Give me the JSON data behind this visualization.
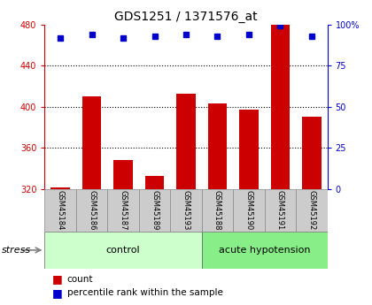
{
  "title": "GDS1251 / 1371576_at",
  "samples": [
    "GSM45184",
    "GSM45186",
    "GSM45187",
    "GSM45189",
    "GSM45193",
    "GSM45188",
    "GSM45190",
    "GSM45191",
    "GSM45192"
  ],
  "counts": [
    322,
    410,
    348,
    333,
    413,
    403,
    397,
    480,
    390
  ],
  "percentiles": [
    92,
    94,
    92,
    93,
    94,
    93,
    94,
    99,
    93
  ],
  "ylim_left": [
    320,
    480
  ],
  "ylim_right": [
    0,
    100
  ],
  "yticks_left": [
    320,
    360,
    400,
    440,
    480
  ],
  "yticks_right": [
    0,
    25,
    50,
    75,
    100
  ],
  "bar_color": "#cc0000",
  "dot_color": "#0000cc",
  "groups": [
    {
      "label": "control",
      "start": 0,
      "end": 5
    },
    {
      "label": "acute hypotension",
      "start": 5,
      "end": 9
    }
  ],
  "group_colors": [
    "#ccffcc",
    "#88ee88"
  ],
  "tick_bg_color": "#cccccc",
  "bg_color": "#ffffff",
  "legend_count_label": "count",
  "legend_pct_label": "percentile rank within the sample",
  "stress_label": "stress"
}
